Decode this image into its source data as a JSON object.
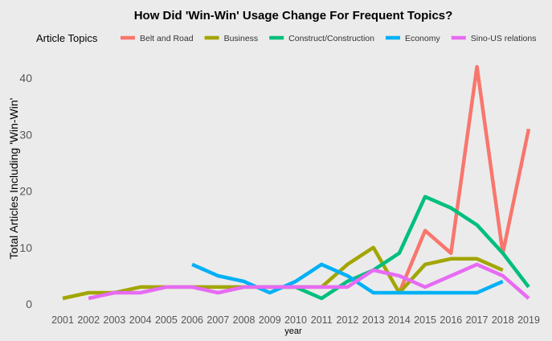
{
  "chart_data": {
    "type": "line",
    "title": "How Did 'Win-Win' Usage Change For Frequent Topics?",
    "xlabel": "year",
    "ylabel": "Total Articles Including 'Win-Win'",
    "legend_title": "Article Topics",
    "legend_position": "top",
    "grid": false,
    "ylim": [
      0,
      45
    ],
    "yticks": [
      0,
      10,
      20,
      30,
      40
    ],
    "x": [
      2001,
      2002,
      2003,
      2004,
      2005,
      2006,
      2007,
      2008,
      2009,
      2010,
      2011,
      2012,
      2013,
      2014,
      2015,
      2016,
      2017,
      2018,
      2019
    ],
    "series": [
      {
        "name": "Belt and Road",
        "color": "#f8766d",
        "points": [
          [
            2014,
            2
          ],
          [
            2015,
            13
          ],
          [
            2016,
            9
          ],
          [
            2017,
            42
          ],
          [
            2018,
            9
          ],
          [
            2019,
            31
          ]
        ]
      },
      {
        "name": "Business",
        "color": "#a3a500",
        "points": [
          [
            2001,
            1
          ],
          [
            2002,
            2
          ],
          [
            2003,
            2
          ],
          [
            2004,
            3
          ],
          [
            2005,
            3
          ],
          [
            2006,
            3
          ],
          [
            2007,
            3
          ],
          [
            2008,
            3
          ],
          [
            2009,
            3
          ],
          [
            2010,
            3
          ],
          [
            2011,
            3
          ],
          [
            2012,
            7
          ],
          [
            2013,
            10
          ],
          [
            2014,
            2
          ],
          [
            2015,
            7
          ],
          [
            2016,
            8
          ],
          [
            2017,
            8
          ],
          [
            2018,
            6
          ]
        ]
      },
      {
        "name": "Construct/Construction",
        "color": "#00bf7d",
        "points": [
          [
            2009,
            3
          ],
          [
            2010,
            3
          ],
          [
            2011,
            1
          ],
          [
            2012,
            4
          ],
          [
            2013,
            6
          ],
          [
            2014,
            9
          ],
          [
            2015,
            19
          ],
          [
            2016,
            17
          ],
          [
            2017,
            14
          ],
          [
            2018,
            9
          ],
          [
            2019,
            3
          ]
        ]
      },
      {
        "name": "Economy",
        "color": "#00b0f6",
        "points": [
          [
            2006,
            7
          ],
          [
            2007,
            5
          ],
          [
            2008,
            4
          ],
          [
            2009,
            2
          ],
          [
            2010,
            4
          ],
          [
            2011,
            7
          ],
          [
            2012,
            5
          ],
          [
            2013,
            2
          ],
          [
            2014,
            2
          ],
          [
            2015,
            2
          ],
          [
            2016,
            2
          ],
          [
            2017,
            2
          ],
          [
            2018,
            4
          ]
        ]
      },
      {
        "name": "Sino-US relations",
        "color": "#e76bf3",
        "points": [
          [
            2002,
            1
          ],
          [
            2003,
            2
          ],
          [
            2004,
            2
          ],
          [
            2005,
            3
          ],
          [
            2006,
            3
          ],
          [
            2007,
            2
          ],
          [
            2008,
            3
          ],
          [
            2009,
            3
          ],
          [
            2010,
            3
          ],
          [
            2011,
            3
          ],
          [
            2012,
            3
          ],
          [
            2013,
            6
          ],
          [
            2014,
            5
          ],
          [
            2015,
            3
          ],
          [
            2016,
            5
          ],
          [
            2017,
            7
          ],
          [
            2018,
            5
          ],
          [
            2019,
            1
          ]
        ]
      }
    ]
  }
}
